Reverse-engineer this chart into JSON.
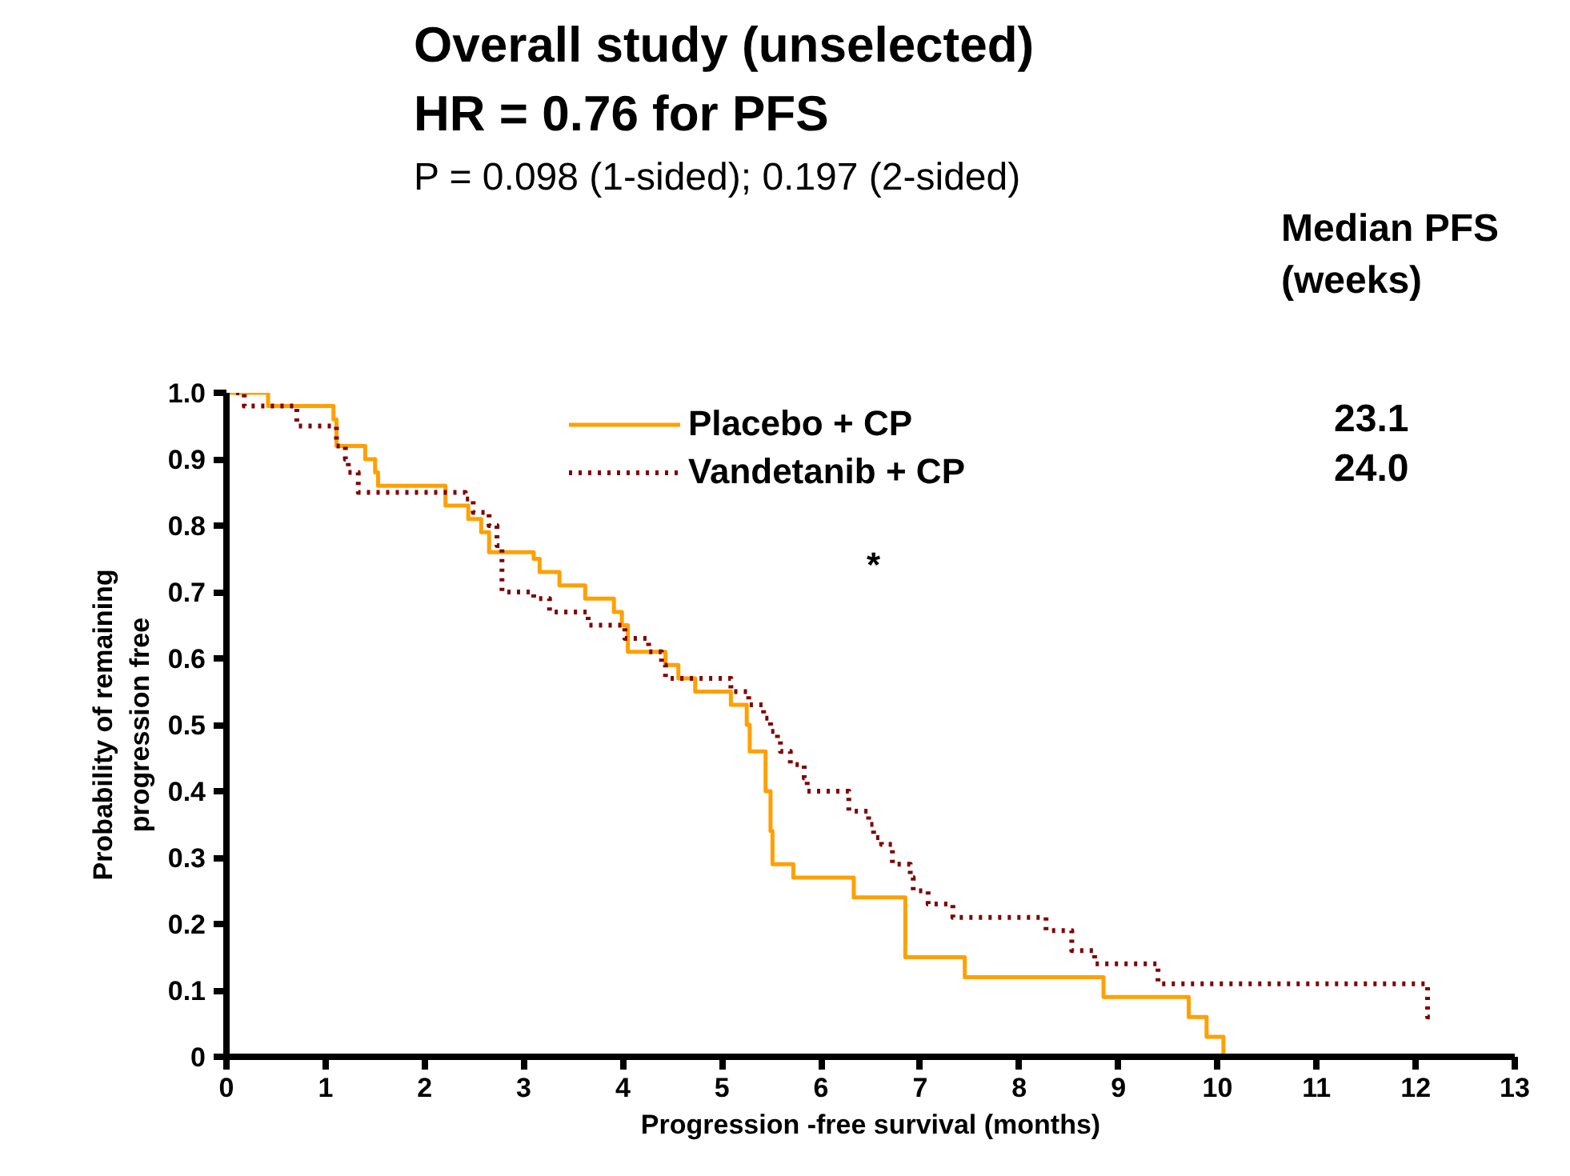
{
  "chart_data": {
    "type": "step",
    "title": "Overall study (unselected)",
    "subtitle": "HR = 0.76 for PFS",
    "xlabel": "Progression -free survival (months)",
    "ylabel": "Probability of remaining\nprogression free",
    "annotations": [
      "P = 0.098 (1-sided); 0.197 (2-sided)",
      "Median PFS\n(weeks)",
      "23.1",
      "24.0",
      "*"
    ],
    "series": [
      {
        "name": "Placebo + CP",
        "color": "#ffa000",
        "line_style": "solid",
        "x": [
          0,
          0.42,
          1.08,
          1.11,
          1.4,
          1.5,
          1.53,
          2.21,
          2.44,
          2.57,
          2.65,
          3.1,
          3.16,
          3.36,
          3.62,
          3.91,
          3.99,
          4.05,
          4.43,
          4.56,
          4.73,
          5.09,
          5.25,
          5.28,
          5.44,
          5.49,
          5.51,
          5.72,
          6.33,
          6.85,
          7.45,
          8.85,
          9.71,
          9.89,
          10.06
        ],
        "values": [
          1.0,
          0.98,
          0.96,
          0.92,
          0.9,
          0.88,
          0.86,
          0.83,
          0.81,
          0.79,
          0.76,
          0.75,
          0.73,
          0.71,
          0.69,
          0.67,
          0.65,
          0.61,
          0.59,
          0.57,
          0.55,
          0.53,
          0.5,
          0.46,
          0.4,
          0.34,
          0.29,
          0.27,
          0.24,
          0.15,
          0.12,
          0.09,
          0.06,
          0.03,
          0
        ]
      },
      {
        "name": "Vandetanib + CP",
        "color": "#800000",
        "line_style": "dotted",
        "x": [
          0,
          0.18,
          0.71,
          1.11,
          1.2,
          1.23,
          1.33,
          2.41,
          2.49,
          2.65,
          2.73,
          2.78,
          3.1,
          3.26,
          3.65,
          4.02,
          4.26,
          4.39,
          4.43,
          5.09,
          5.27,
          5.42,
          5.49,
          5.56,
          5.59,
          5.69,
          5.83,
          5.86,
          6.28,
          6.48,
          6.53,
          6.61,
          6.72,
          6.9,
          6.93,
          7.08,
          7.33,
          8.27,
          8.53,
          8.76,
          9.4,
          12.12,
          12.2
        ],
        "values": [
          1.0,
          0.98,
          0.95,
          0.92,
          0.9,
          0.88,
          0.85,
          0.84,
          0.82,
          0.8,
          0.77,
          0.7,
          0.69,
          0.67,
          0.65,
          0.63,
          0.61,
          0.59,
          0.57,
          0.55,
          0.53,
          0.51,
          0.49,
          0.48,
          0.46,
          0.44,
          0.42,
          0.4,
          0.37,
          0.35,
          0.33,
          0.32,
          0.29,
          0.27,
          0.25,
          0.23,
          0.21,
          0.19,
          0.16,
          0.14,
          0.11,
          0.06,
          0.06
        ]
      }
    ],
    "xlim": [
      0,
      13
    ],
    "xticks": [
      0,
      1,
      2,
      3,
      4,
      5,
      6,
      7,
      8,
      9,
      10,
      11,
      12,
      13
    ],
    "ylim": [
      0,
      1.0
    ],
    "yticks": [
      {
        "value": 0,
        "label": "0"
      },
      0.1,
      0.2,
      0.3,
      0.4,
      0.5,
      0.6,
      0.7,
      0.8,
      0.9,
      {
        "value": 1.0,
        "label": "1.0"
      }
    ],
    "grid": false,
    "legend": "top"
  }
}
